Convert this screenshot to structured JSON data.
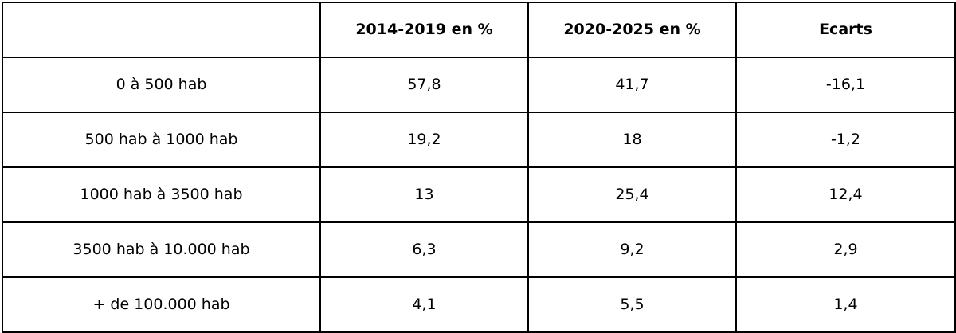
{
  "table": {
    "headers": [
      "",
      "2014-2019 en %",
      "2020-2025 en %",
      "Ecarts"
    ],
    "rows": [
      [
        "0 à 500 hab",
        "57,8",
        "41,7",
        "-16,1"
      ],
      [
        "500 hab à 1000 hab",
        "19,2",
        "18",
        "-1,2"
      ],
      [
        "1000 hab à 3500 hab",
        "13",
        "25,4",
        "12,4"
      ],
      [
        "3500 hab à 10.000 hab",
        "6,3",
        "9,2",
        "2,9"
      ],
      [
        "+ de 100.000 hab",
        "4,1",
        "5,5",
        "1,4"
      ]
    ]
  },
  "colors": {
    "border": "#000000",
    "background": "#ffffff",
    "text": "#000000"
  }
}
